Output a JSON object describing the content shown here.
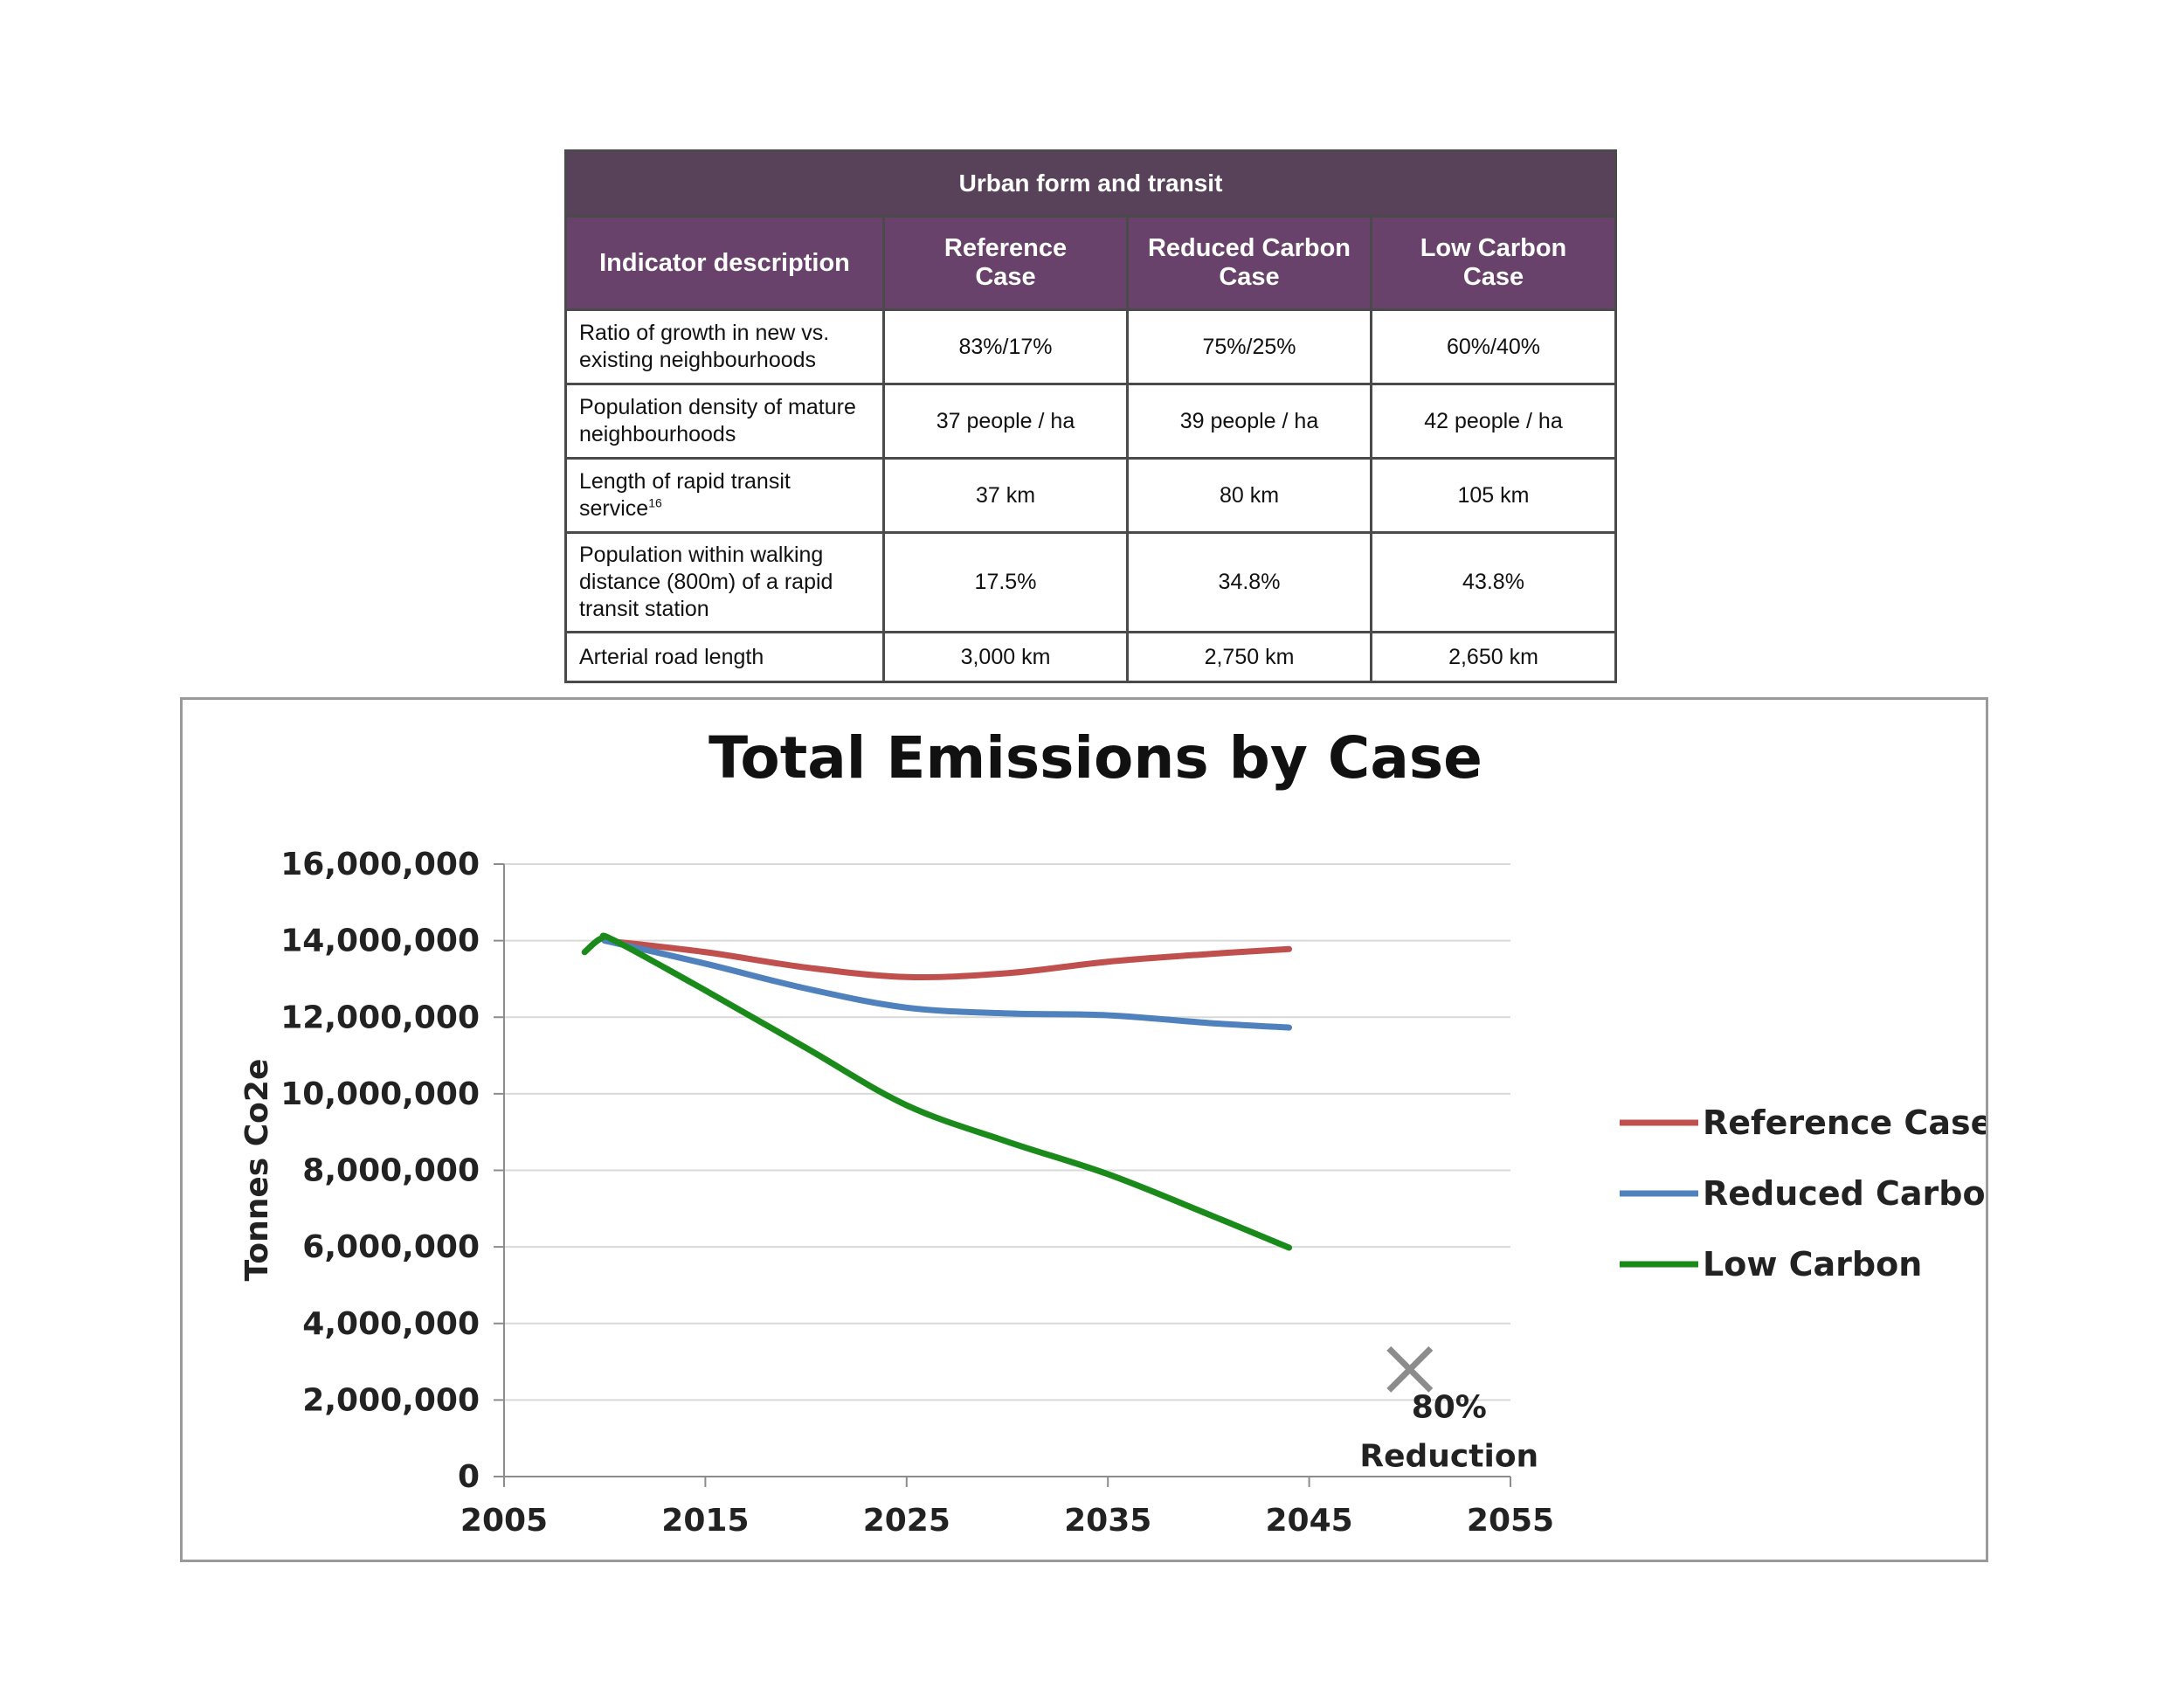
{
  "table": {
    "title": "Urban form and transit",
    "headers": [
      "Indicator description",
      "Reference Case",
      "Reduced Carbon Case",
      "Low Carbon Case"
    ],
    "rows": [
      {
        "desc": "Ratio of growth in new vs. existing neighbourhoods",
        "sup": "",
        "values": [
          "83%/17%",
          "75%/25%",
          "60%/40%"
        ]
      },
      {
        "desc": "Population density of mature neighbourhoods",
        "sup": "",
        "values": [
          "37 people / ha",
          "39 people / ha",
          "42 people / ha"
        ]
      },
      {
        "desc": "Length of rapid transit service",
        "sup": "16",
        "values": [
          "37 km",
          "80 km",
          "105 km"
        ]
      },
      {
        "desc": "Population within walking distance (800m) of a rapid transit station",
        "sup": "",
        "values": [
          "17.5%",
          "34.8%",
          "43.8%"
        ]
      },
      {
        "desc": "Arterial road length",
        "sup": "",
        "values": [
          "3,000 km",
          "2,750 km",
          "2,650 km"
        ]
      }
    ]
  },
  "chart_data": {
    "type": "line",
    "title": "Total Emissions by Case",
    "xlabel": "",
    "ylabel": "Tonnes Co2e",
    "xlim": [
      2005,
      2055
    ],
    "ylim": [
      0,
      16000000
    ],
    "xticks": [
      2005,
      2015,
      2025,
      2035,
      2045,
      2055
    ],
    "xtick_labels": [
      "2005",
      "2015",
      "2025",
      "2035",
      "2045",
      "2055"
    ],
    "yticks": [
      0,
      2000000,
      4000000,
      6000000,
      8000000,
      10000000,
      12000000,
      14000000,
      16000000
    ],
    "ytick_labels": [
      "0",
      "2,000,000",
      "4,000,000",
      "6,000,000",
      "8,000,000",
      "10,000,000",
      "12,000,000",
      "14,000,000",
      "16,000,000"
    ],
    "grid": "horizontal",
    "legend_position": "right",
    "series": [
      {
        "name": "Reference Case",
        "color": "#c0504d",
        "x": [
          2010,
          2015,
          2020,
          2025,
          2030,
          2035,
          2040,
          2044
        ],
        "y": [
          14000000,
          13700000,
          13300000,
          13050000,
          13150000,
          13450000,
          13650000,
          13780000
        ]
      },
      {
        "name": "Reduced Carbon",
        "color": "#4f81bd",
        "x": [
          2010,
          2015,
          2020,
          2025,
          2030,
          2035,
          2040,
          2044
        ],
        "y": [
          14000000,
          13400000,
          12750000,
          12250000,
          12100000,
          12050000,
          11850000,
          11730000
        ]
      },
      {
        "name": "Low Carbon",
        "color": "#1a8a1a",
        "x": [
          2009,
          2009.8,
          2010.5,
          2015,
          2020,
          2025,
          2030,
          2035,
          2040,
          2044
        ],
        "y": [
          13700000,
          14050000,
          14000000,
          12700000,
          11200000,
          9700000,
          8750000,
          7900000,
          6850000,
          5980000
        ]
      }
    ],
    "annotations": [
      {
        "marker": "x",
        "x": 2050,
        "y": 2800000,
        "color": "#8c8c8c",
        "label_lines": [
          "80%",
          "Reduction"
        ]
      }
    ]
  }
}
